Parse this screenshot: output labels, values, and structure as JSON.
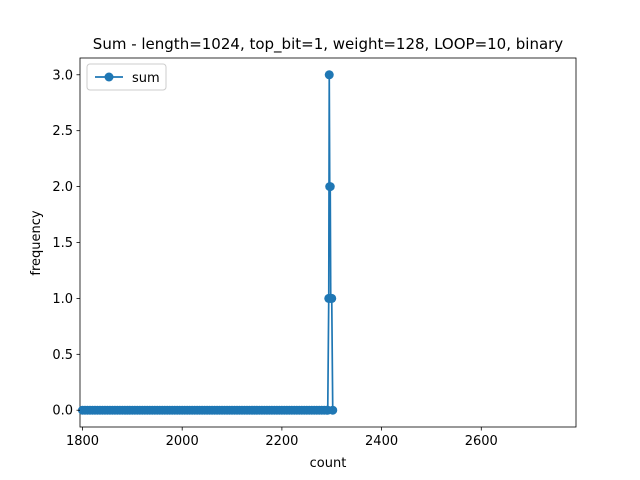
{
  "chart_data": {
    "type": "line",
    "title": "Sum - length=1024, top_bit=1, weight=128, LOOP=10, binary",
    "xlabel": "count",
    "ylabel": "frequency",
    "xlim": [
      1795,
      2790
    ],
    "ylim": [
      -0.15,
      3.15
    ],
    "xticks": [
      1800,
      2000,
      2200,
      2400,
      2600
    ],
    "xtick_labels": [
      "1800",
      "2000",
      "2200",
      "2400",
      "2600"
    ],
    "yticks": [
      0.0,
      0.5,
      1.0,
      1.5,
      2.0,
      2.5,
      3.0
    ],
    "ytick_labels": [
      "0.0",
      "0.5",
      "1.0",
      "1.5",
      "2.0",
      "2.5",
      "3.0"
    ],
    "grid": false,
    "legend": {
      "placement": "top-left",
      "entries": [
        "sum"
      ]
    },
    "series": [
      {
        "name": "sum",
        "color": "#1f77b4",
        "marker": "circle",
        "x": [
          1800,
          1805,
          1810,
          1815,
          1820,
          1825,
          1830,
          1835,
          1840,
          1845,
          1850,
          1855,
          1860,
          1865,
          1870,
          1875,
          1880,
          1885,
          1890,
          1895,
          1900,
          1905,
          1910,
          1915,
          1920,
          1925,
          1930,
          1935,
          1940,
          1945,
          1950,
          1955,
          1960,
          1965,
          1970,
          1975,
          1980,
          1985,
          1990,
          1995,
          2000,
          2005,
          2010,
          2015,
          2020,
          2025,
          2030,
          2035,
          2040,
          2045,
          2050,
          2055,
          2060,
          2065,
          2070,
          2075,
          2080,
          2085,
          2090,
          2095,
          2100,
          2105,
          2110,
          2115,
          2120,
          2125,
          2130,
          2135,
          2140,
          2145,
          2150,
          2155,
          2160,
          2165,
          2170,
          2175,
          2180,
          2185,
          2190,
          2195,
          2200,
          2205,
          2210,
          2215,
          2220,
          2225,
          2230,
          2235,
          2240,
          2245,
          2250,
          2255,
          2260,
          2265,
          2270,
          2275,
          2280,
          2285,
          2290,
          2292,
          2294,
          2295,
          2296,
          2297,
          2298,
          2300,
          2302
        ],
        "y": [
          0,
          0,
          0,
          0,
          0,
          0,
          0,
          0,
          0,
          0,
          0,
          0,
          0,
          0,
          0,
          0,
          0,
          0,
          0,
          0,
          0,
          0,
          0,
          0,
          0,
          0,
          0,
          0,
          0,
          0,
          0,
          0,
          0,
          0,
          0,
          0,
          0,
          0,
          0,
          0,
          0,
          0,
          0,
          0,
          0,
          0,
          0,
          0,
          0,
          0,
          0,
          0,
          0,
          0,
          0,
          0,
          0,
          0,
          0,
          0,
          0,
          0,
          0,
          0,
          0,
          0,
          0,
          0,
          0,
          0,
          0,
          0,
          0,
          0,
          0,
          0,
          0,
          0,
          0,
          0,
          0,
          0,
          0,
          0,
          0,
          0,
          0,
          0,
          0,
          0,
          0,
          0,
          0,
          0,
          0,
          0,
          0,
          0,
          0,
          0,
          1,
          3,
          2,
          2,
          1,
          1,
          0
        ]
      }
    ]
  }
}
